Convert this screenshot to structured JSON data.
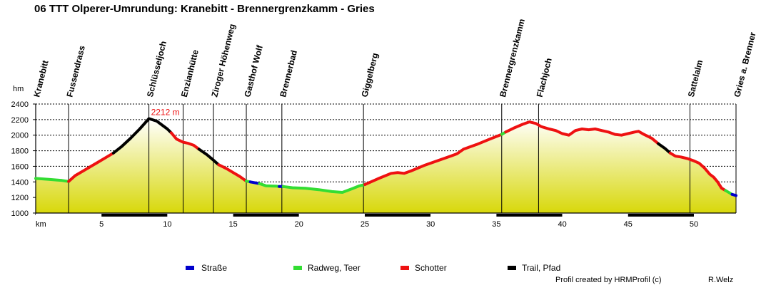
{
  "title": "06 TTT Olperer-Umrundung: Kranebitt - Brennergrenzkamm - Gries",
  "credits": {
    "left": "Profil created by HRMProfil (c)",
    "right": "R.Welz"
  },
  "chart_data": {
    "type": "area",
    "xlabel": "km",
    "ylabel": "hm",
    "xlim": [
      0,
      53.2
    ],
    "ylim": [
      1000,
      2400
    ],
    "x_ticks": [
      5,
      10,
      15,
      20,
      25,
      30,
      35,
      40,
      45,
      50
    ],
    "y_ticks": [
      1000,
      1200,
      1400,
      1600,
      1800,
      2000,
      2200,
      2400
    ],
    "grid": true,
    "peak_annotation": {
      "x": 8.6,
      "y": 2212,
      "label": "2212 m"
    },
    "waypoints": [
      {
        "name": "Kranebitt",
        "km": 0
      },
      {
        "name": "Fussendrass",
        "km": 2.5
      },
      {
        "name": "Schlüsseljoch",
        "km": 8.6
      },
      {
        "name": "Enzianhütte",
        "km": 11.2
      },
      {
        "name": "Ziroger Höhenweg",
        "km": 13.5
      },
      {
        "name": "Gasthof Wolf",
        "km": 16.0
      },
      {
        "name": "Brennerbad",
        "km": 18.7
      },
      {
        "name": "Giggelberg",
        "km": 24.9
      },
      {
        "name": "Brennergrenzkamm",
        "km": 35.4
      },
      {
        "name": "Flachjoch",
        "km": 38.2
      },
      {
        "name": "Sattelalm",
        "km": 49.7
      },
      {
        "name": "Gries a. Brenner",
        "km": 53.2
      }
    ],
    "legend": [
      {
        "label": "Straße",
        "color": "#0000cc"
      },
      {
        "label": "Radweg, Teer",
        "color": "#33dd33"
      },
      {
        "label": "Schotter",
        "color": "#ee1111"
      },
      {
        "label": "Trail, Pfad",
        "color": "#000000"
      }
    ],
    "segments": [
      {
        "surface": "Radweg, Teer",
        "color": "#33dd33",
        "points": [
          [
            0,
            1445
          ],
          [
            1.0,
            1432
          ],
          [
            2.0,
            1418
          ],
          [
            2.5,
            1405
          ]
        ]
      },
      {
        "surface": "Schotter",
        "color": "#ee1111",
        "points": [
          [
            2.5,
            1405
          ],
          [
            3.0,
            1480
          ],
          [
            3.8,
            1560
          ],
          [
            4.6,
            1640
          ],
          [
            5.4,
            1720
          ],
          [
            5.9,
            1770
          ]
        ]
      },
      {
        "surface": "Trail, Pfad",
        "color": "#000000",
        "points": [
          [
            5.9,
            1770
          ],
          [
            6.5,
            1850
          ],
          [
            7.2,
            1960
          ],
          [
            7.9,
            2080
          ],
          [
            8.6,
            2212
          ],
          [
            9.2,
            2180
          ],
          [
            10.0,
            2080
          ],
          [
            10.3,
            2030
          ]
        ]
      },
      {
        "surface": "Schotter",
        "color": "#ee1111",
        "points": [
          [
            10.3,
            2030
          ],
          [
            10.7,
            1950
          ],
          [
            11.2,
            1910
          ],
          [
            11.6,
            1895
          ],
          [
            12.0,
            1870
          ],
          [
            12.4,
            1820
          ]
        ]
      },
      {
        "surface": "Trail, Pfad",
        "color": "#000000",
        "points": [
          [
            12.4,
            1820
          ],
          [
            13.0,
            1750
          ],
          [
            13.5,
            1680
          ],
          [
            13.9,
            1620
          ]
        ]
      },
      {
        "surface": "Schotter",
        "color": "#ee1111",
        "points": [
          [
            13.9,
            1620
          ],
          [
            14.5,
            1570
          ],
          [
            15.0,
            1520
          ],
          [
            15.5,
            1470
          ],
          [
            16.0,
            1410
          ]
        ]
      },
      {
        "surface": "Radweg, Teer",
        "color": "#33dd33",
        "points": [
          [
            16.0,
            1410
          ],
          [
            16.3,
            1400
          ]
        ]
      },
      {
        "surface": "Straße",
        "color": "#0000cc",
        "points": [
          [
            16.3,
            1400
          ],
          [
            17.0,
            1378
          ]
        ]
      },
      {
        "surface": "Radweg, Teer",
        "color": "#33dd33",
        "points": [
          [
            17.0,
            1378
          ],
          [
            17.5,
            1350
          ],
          [
            18.3,
            1345
          ],
          [
            18.5,
            1340
          ]
        ]
      },
      {
        "surface": "Straße",
        "color": "#0000cc",
        "points": [
          [
            18.5,
            1340
          ],
          [
            18.8,
            1340
          ]
        ]
      },
      {
        "surface": "Radweg, Teer",
        "color": "#33dd33",
        "points": [
          [
            18.8,
            1340
          ],
          [
            19.5,
            1325
          ],
          [
            20.5,
            1318
          ],
          [
            21.5,
            1300
          ],
          [
            22.5,
            1275
          ],
          [
            23.3,
            1265
          ],
          [
            24.0,
            1310
          ],
          [
            24.6,
            1350
          ],
          [
            25.0,
            1365
          ]
        ]
      },
      {
        "surface": "Schotter",
        "color": "#ee1111",
        "points": [
          [
            25.0,
            1365
          ],
          [
            26.0,
            1440
          ],
          [
            27.0,
            1510
          ],
          [
            27.5,
            1520
          ],
          [
            28.0,
            1510
          ],
          [
            28.5,
            1540
          ],
          [
            29.5,
            1610
          ],
          [
            30.5,
            1670
          ],
          [
            31.5,
            1730
          ],
          [
            32.0,
            1760
          ],
          [
            32.5,
            1820
          ],
          [
            33.5,
            1880
          ],
          [
            34.5,
            1950
          ],
          [
            35.4,
            2010
          ]
        ]
      },
      {
        "surface": "Radweg, Teer",
        "color": "#33dd33",
        "points": [
          [
            35.4,
            2010
          ],
          [
            35.7,
            2040
          ]
        ]
      },
      {
        "surface": "Schotter",
        "color": "#ee1111",
        "points": [
          [
            35.7,
            2040
          ],
          [
            36.3,
            2090
          ],
          [
            37.0,
            2140
          ],
          [
            37.5,
            2170
          ],
          [
            38.0,
            2150
          ],
          [
            38.4,
            2110
          ],
          [
            39.0,
            2080
          ],
          [
            39.5,
            2060
          ],
          [
            40.0,
            2020
          ],
          [
            40.5,
            2000
          ],
          [
            41.0,
            2060
          ],
          [
            41.5,
            2080
          ],
          [
            42.0,
            2070
          ],
          [
            42.5,
            2080
          ],
          [
            43.0,
            2060
          ],
          [
            43.5,
            2040
          ],
          [
            44.0,
            2010
          ],
          [
            44.5,
            2000
          ],
          [
            45.0,
            2020
          ],
          [
            45.5,
            2040
          ],
          [
            45.8,
            2050
          ],
          [
            46.2,
            2010
          ],
          [
            46.8,
            1960
          ],
          [
            47.3,
            1890
          ]
        ]
      },
      {
        "surface": "Trail, Pfad",
        "color": "#000000",
        "points": [
          [
            47.3,
            1890
          ],
          [
            47.8,
            1830
          ],
          [
            48.2,
            1770
          ]
        ]
      },
      {
        "surface": "Schotter",
        "color": "#ee1111",
        "points": [
          [
            48.2,
            1770
          ],
          [
            48.6,
            1730
          ],
          [
            49.0,
            1720
          ],
          [
            49.5,
            1700
          ],
          [
            50.0,
            1670
          ],
          [
            50.4,
            1640
          ],
          [
            50.8,
            1580
          ],
          [
            51.2,
            1500
          ],
          [
            51.5,
            1460
          ],
          [
            51.8,
            1400
          ],
          [
            52.1,
            1320
          ],
          [
            52.4,
            1290
          ]
        ]
      },
      {
        "surface": "Radweg, Teer",
        "color": "#33dd33",
        "points": [
          [
            52.4,
            1290
          ],
          [
            52.9,
            1240
          ]
        ]
      },
      {
        "surface": "Straße",
        "color": "#0000cc",
        "points": [
          [
            52.9,
            1240
          ],
          [
            53.2,
            1225
          ]
        ]
      }
    ]
  }
}
